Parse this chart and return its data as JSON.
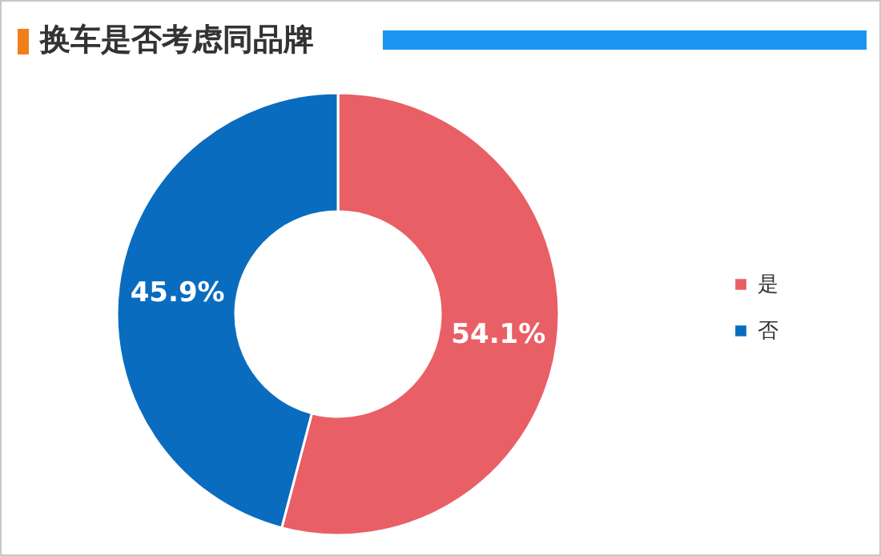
{
  "chart_data": {
    "type": "donut",
    "title": "换车是否考虑同品牌",
    "categories": [
      "是",
      "否"
    ],
    "values": [
      54.1,
      45.9
    ],
    "colors": [
      "#e95f66",
      "#0a6cbf"
    ],
    "value_labels": [
      "54.1%",
      "45.9%"
    ],
    "legend": "right"
  }
}
